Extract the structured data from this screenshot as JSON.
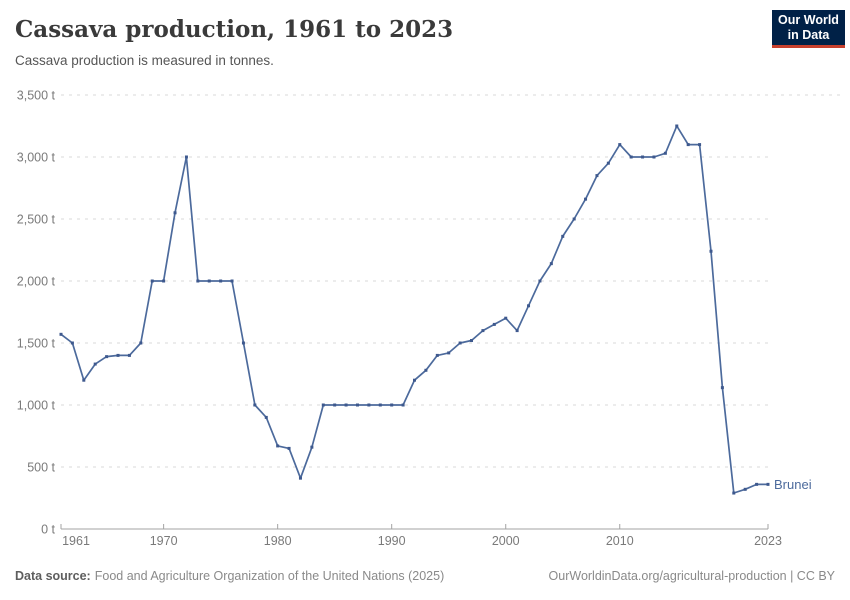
{
  "header": {
    "title": "Cassava production, 1961 to 2023",
    "subtitle": "Cassava production is measured in tonnes."
  },
  "logo": {
    "line1": "Our World",
    "line2": "in Data",
    "bg_color": "#002147",
    "accent_color": "#C7402D"
  },
  "chart_data": {
    "type": "line",
    "title": "Cassava production, 1961 to 2023",
    "subtitle": "Cassava production is measured in tonnes.",
    "unit_suffix": " t",
    "ylim": [
      0,
      3500
    ],
    "yticks": [
      0,
      500,
      1000,
      1500,
      2000,
      2500,
      3000,
      3500
    ],
    "xticks": [
      1961,
      1970,
      1980,
      1990,
      2000,
      2010,
      2023
    ],
    "grid": "horizontal-dashed",
    "legend_position": "end-of-line-label",
    "series": [
      {
        "name": "Brunei",
        "color": "#4C6A9C",
        "x": [
          1961,
          1962,
          1963,
          1964,
          1965,
          1966,
          1967,
          1968,
          1969,
          1970,
          1971,
          1972,
          1973,
          1974,
          1975,
          1976,
          1977,
          1978,
          1979,
          1980,
          1981,
          1982,
          1983,
          1984,
          1985,
          1986,
          1987,
          1988,
          1989,
          1990,
          1991,
          1992,
          1993,
          1994,
          1995,
          1996,
          1997,
          1998,
          1999,
          2000,
          2001,
          2002,
          2003,
          2004,
          2005,
          2006,
          2007,
          2008,
          2009,
          2010,
          2011,
          2012,
          2013,
          2014,
          2015,
          2016,
          2017,
          2018,
          2019,
          2020,
          2021,
          2022,
          2023
        ],
        "values": [
          1570,
          1500,
          1200,
          1330,
          1390,
          1400,
          1400,
          1500,
          2000,
          2000,
          2550,
          3000,
          2000,
          2000,
          2000,
          2000,
          1500,
          1000,
          900,
          670,
          650,
          410,
          660,
          1000,
          1000,
          1000,
          1000,
          1000,
          1000,
          1000,
          1000,
          1200,
          1280,
          1400,
          1420,
          1500,
          1520,
          1600,
          1650,
          1700,
          1600,
          1800,
          2000,
          2140,
          2360,
          2500,
          2660,
          2850,
          2950,
          3100,
          3000,
          3000,
          3000,
          3030,
          3250,
          3100,
          3100,
          2240,
          1140,
          290,
          320,
          360,
          360
        ]
      }
    ]
  },
  "colors": {
    "line": "#4C6A9C",
    "marker": "#3E598E",
    "grid": "#DADADA",
    "axis": "#A3A3A3",
    "tick_label": "#7A7A7A",
    "entity_label": "#4C6A9C"
  },
  "footer": {
    "source_label": "Data source:",
    "source_text": "Food and Agriculture Organization of the United Nations (2025)",
    "link": "OurWorldinData.org/agricultural-production | CC BY"
  }
}
